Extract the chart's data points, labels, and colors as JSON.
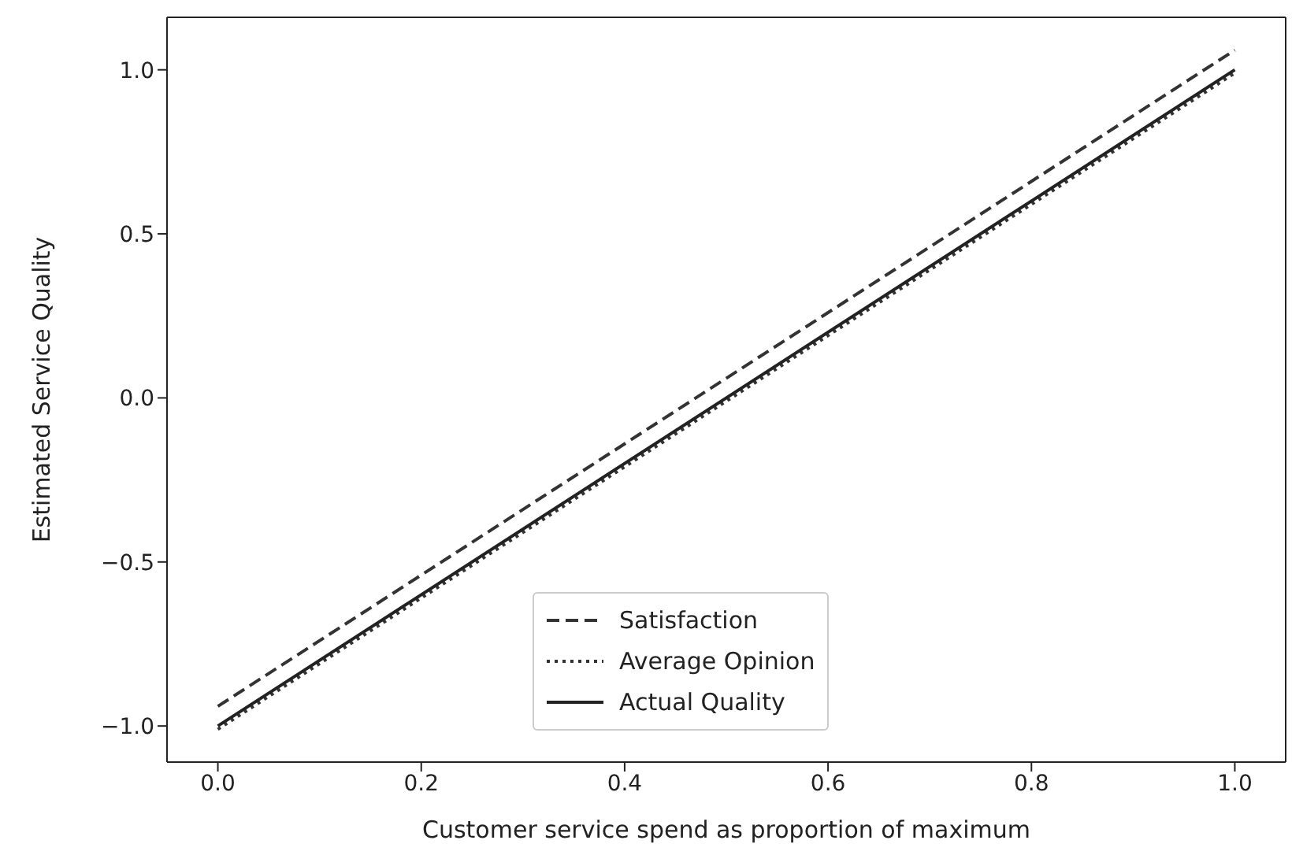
{
  "chart_data": {
    "type": "line",
    "xlabel": "Customer service spend as proportion of maximum",
    "ylabel": "Estimated Service Quality",
    "x": [
      0,
      1
    ],
    "xlim": [
      -0.05,
      1.05
    ],
    "xticks": [
      {
        "value": 0,
        "label": "0.0"
      },
      {
        "value": 0.2,
        "label": "0.2"
      },
      {
        "value": 0.4,
        "label": "0.4"
      },
      {
        "value": 0.6,
        "label": "0.6"
      },
      {
        "value": 0.8,
        "label": "0.8"
      },
      {
        "value": 1,
        "label": "1.0"
      }
    ],
    "ylim": [
      -1.11,
      1.16
    ],
    "yticks": [
      {
        "value": -1,
        "label": "−1.0"
      },
      {
        "value": -0.5,
        "label": "−0.5"
      },
      {
        "value": 0,
        "label": "0.0"
      },
      {
        "value": 0.5,
        "label": "0.5"
      },
      {
        "value": 1,
        "label": "1.0"
      }
    ],
    "legend": "bottom",
    "grid": false,
    "series": [
      {
        "name": "Satisfaction",
        "color": "#333333",
        "values": [
          -0.94,
          1.06
        ],
        "line_style": "dashed"
      },
      {
        "name": "Average Opinion",
        "color": "#333333",
        "values": [
          -1.01,
          0.99
        ],
        "line_style": "dotted"
      },
      {
        "name": "Actual Quality",
        "color": "#222222",
        "values": [
          -1,
          1
        ],
        "line_style": "solid"
      }
    ]
  }
}
